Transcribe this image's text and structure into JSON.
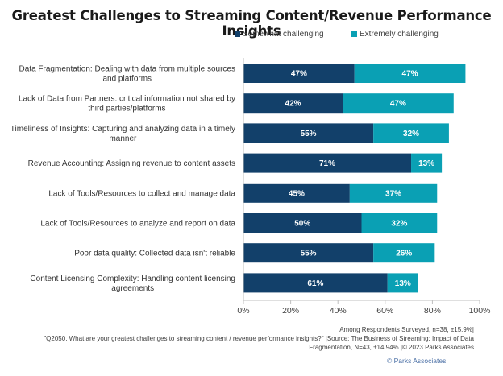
{
  "chart_data": {
    "type": "bar",
    "orientation": "horizontal",
    "stacked": true,
    "title": "Greatest Challenges to Streaming Content/Revenue Performance Insights",
    "categories": [
      [
        "Data Fragmentation: Dealing with data from multiple sources",
        "and platforms"
      ],
      [
        "Lack of Data from Partners: critical information not shared by",
        "third parties/platforms"
      ],
      [
        "Timeliness of Insights: Capturing and analyzing data in a timely",
        "manner"
      ],
      [
        "Revenue Accounting: Assigning revenue to content assets"
      ],
      [
        "Lack of Tools/Resources to collect and manage data"
      ],
      [
        "Lack of Tools/Resources to analyze and report on data"
      ],
      [
        "Poor data quality: Collected data isn't reliable"
      ],
      [
        "Content Licensing Complexity: Handling content licensing",
        "agreements"
      ]
    ],
    "series": [
      {
        "name": "Somewhat challenging",
        "color": "#12406a",
        "values": [
          47,
          42,
          55,
          71,
          45,
          50,
          55,
          61
        ]
      },
      {
        "name": "Extremely challenging",
        "color": "#0aa0b4",
        "values": [
          47,
          47,
          32,
          13,
          37,
          32,
          26,
          13
        ]
      }
    ],
    "xlabel": "",
    "ylabel": "",
    "xlim": [
      0,
      100
    ],
    "xticks": [
      "0%",
      "20%",
      "40%",
      "60%",
      "80%",
      "100%"
    ],
    "grid": false,
    "legend": "top-right",
    "value_suffix": "%"
  },
  "footnote": {
    "line1": "Among Respondents Surveyed, n=38, ±15.9%|",
    "line2": "\"Q2050.  What are your greatest challenges to streaming content / revenue performance insights?\" |Source: The Business of Streaming: Impact of Data",
    "line3": "Fragmentation, N=43, ±14.94% |© 2023 Parks Associates"
  },
  "copyright": "© Parks Associates"
}
